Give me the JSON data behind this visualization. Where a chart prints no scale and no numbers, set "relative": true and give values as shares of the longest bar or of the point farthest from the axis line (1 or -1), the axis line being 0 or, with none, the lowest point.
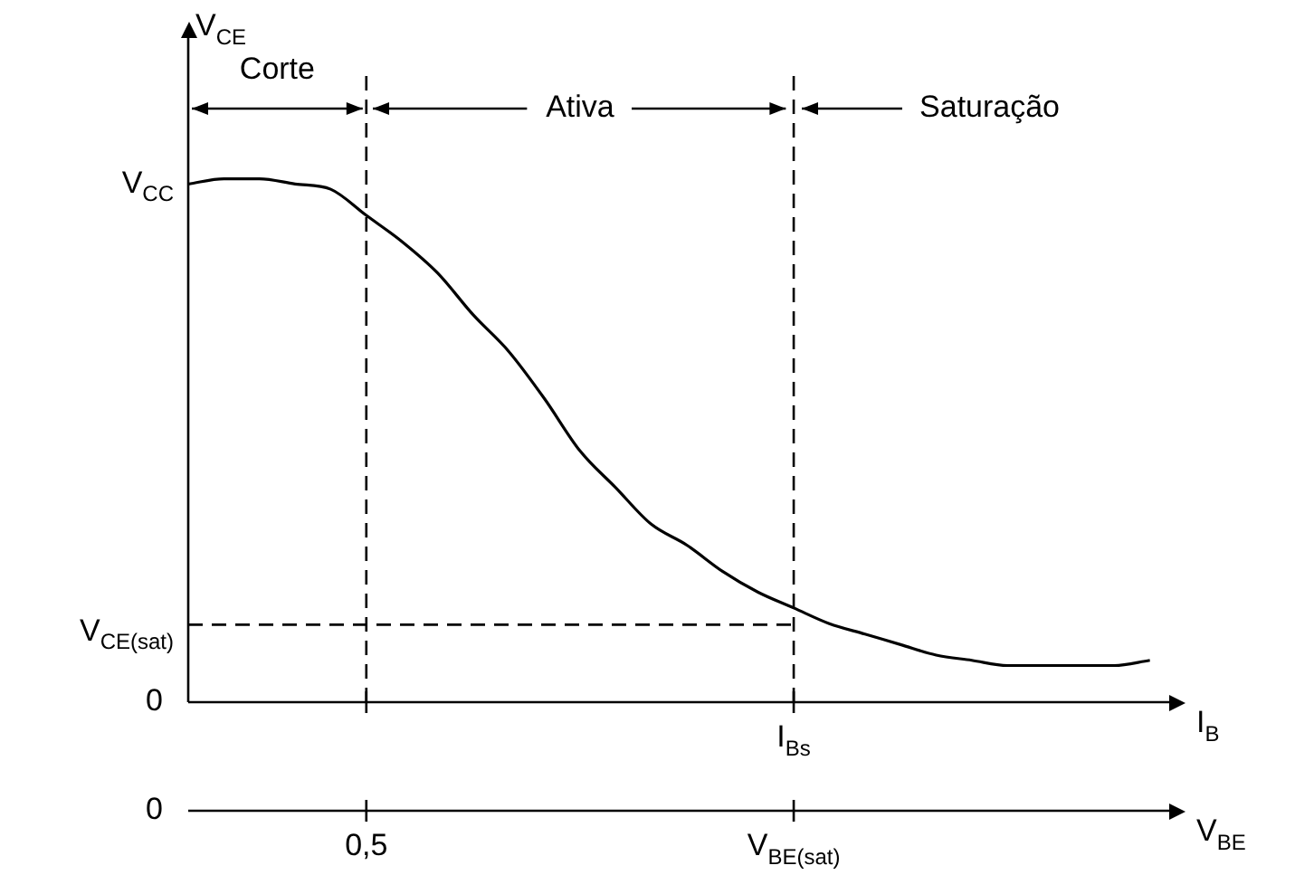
{
  "chart_data": {
    "type": "line",
    "relative": true,
    "ylabel": "V$_{CE}$",
    "xlabel": "V$_{BE}$",
    "categories": [
      null,
      null,
      null,
      null,
      null,
      "0,5",
      null,
      null,
      null,
      null,
      null,
      null,
      null,
      null,
      null,
      null,
      null,
      "V$_{BE(sat)}$",
      null,
      null,
      null,
      null,
      null,
      null,
      null,
      null,
      null,
      null
    ],
    "series": [
      {
        "color": "#000000",
        "values": [
          0.99,
          1.0,
          1.0,
          0.99,
          0.98,
          0.93,
          0.88,
          0.82,
          0.74,
          0.67,
          0.58,
          0.48,
          0.41,
          0.34,
          0.3,
          0.25,
          0.21,
          0.18,
          0.15,
          0.13,
          0.11,
          0.09,
          0.08,
          0.07,
          0.07,
          0.07,
          0.07,
          0.08
        ]
      }
    ],
    "ref_lines": [
      {
        "axis": "x",
        "value": "0,5",
        "line_style": "dashed"
      },
      {
        "axis": "x",
        "value": "V$_{BE(sat)}$",
        "label": "I$_{Bs}$",
        "line_style": "dashed"
      },
      {
        "axis": "y",
        "value": 0.148,
        "label": "V$_{CE(sat)}$",
        "line_style": "dashed"
      }
    ],
    "annotations": [
      "Corte",
      "Ativa",
      "Saturação",
      "V$_{CC}$",
      "0",
      "I$_{B}$",
      "0"
    ],
    "line_style": "solid"
  }
}
